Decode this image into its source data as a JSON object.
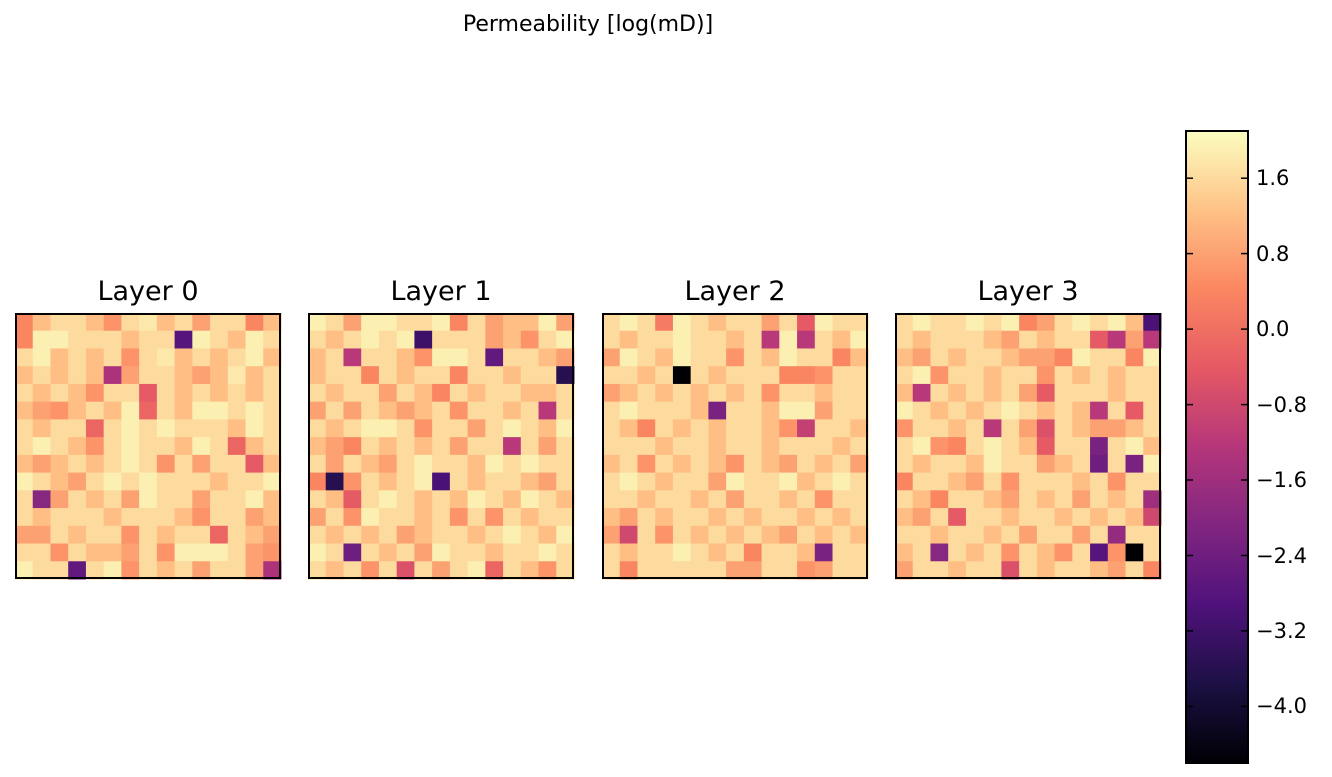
{
  "title": "Permeability [log(mD)]",
  "chart_data": {
    "type": "heatmap",
    "colormap": "magma",
    "value_range": [
      -4.6,
      2.1
    ],
    "colorbar_ticks": [
      "1.6",
      "0.8",
      "0.0",
      "−0.8",
      "−1.6",
      "−2.4",
      "−3.2",
      "−4.0"
    ],
    "colorbar_tick_values": [
      1.6,
      0.8,
      0.0,
      -0.8,
      -1.6,
      -2.4,
      -3.2,
      -4.0
    ],
    "axes_ticks": "none",
    "panels": [
      {
        "title": "Layer 0",
        "values": [
          [
            0.4,
            1.2,
            1.6,
            1.6,
            1.2,
            0.6,
            1.6,
            1.8,
            1.2,
            1.6,
            0.8,
            1.6,
            1.6,
            0.4,
            1.2
          ],
          [
            0.4,
            1.9,
            1.9,
            1.6,
            1.6,
            1.6,
            1.2,
            1.6,
            1.6,
            -2.8,
            1.9,
            1.6,
            1.2,
            1.9,
            1.6
          ],
          [
            1.6,
            1.9,
            1.2,
            1.6,
            1.2,
            1.6,
            0.6,
            1.6,
            1.8,
            1.2,
            1.6,
            1.2,
            1.6,
            1.9,
            1.2
          ],
          [
            1.2,
            1.6,
            1.2,
            1.6,
            1.2,
            -1.4,
            0.8,
            1.6,
            1.6,
            1.2,
            0.8,
            1.2,
            1.8,
            1.2,
            1.6
          ],
          [
            1.6,
            1.2,
            1.6,
            1.2,
            0.6,
            1.6,
            1.6,
            -0.4,
            1.6,
            1.2,
            1.6,
            1.2,
            1.6,
            1.2,
            1.6
          ],
          [
            1.2,
            0.8,
            0.6,
            1.2,
            1.6,
            1.2,
            1.9,
            -0.2,
            1.6,
            1.2,
            1.9,
            1.9,
            1.6,
            1.9,
            1.6
          ],
          [
            1.6,
            1.2,
            1.6,
            1.6,
            -0.2,
            1.6,
            1.9,
            1.6,
            1.9,
            1.6,
            1.6,
            1.6,
            1.2,
            1.9,
            1.6
          ],
          [
            1.6,
            1.9,
            1.6,
            1.2,
            0.6,
            1.6,
            1.9,
            1.6,
            1.6,
            1.2,
            1.9,
            1.6,
            -0.2,
            1.2,
            1.6
          ],
          [
            1.2,
            0.8,
            1.2,
            1.6,
            1.2,
            1.6,
            1.9,
            1.6,
            0.6,
            1.6,
            0.8,
            1.6,
            1.6,
            -0.4,
            1.2
          ],
          [
            1.9,
            1.6,
            1.2,
            0.8,
            1.6,
            1.9,
            1.6,
            1.9,
            1.6,
            1.6,
            1.6,
            1.2,
            1.6,
            1.6,
            1.9
          ],
          [
            1.6,
            -2.0,
            0.8,
            1.6,
            1.2,
            1.6,
            0.8,
            1.9,
            1.6,
            1.6,
            0.8,
            1.6,
            1.6,
            1.9,
            1.2
          ],
          [
            1.6,
            1.2,
            1.6,
            1.6,
            1.6,
            1.2,
            1.6,
            1.6,
            1.6,
            1.2,
            0.6,
            1.6,
            1.6,
            0.8,
            1.2
          ],
          [
            0.8,
            0.8,
            1.6,
            1.2,
            1.6,
            1.6,
            0.6,
            1.6,
            1.2,
            1.6,
            1.6,
            -0.2,
            1.6,
            1.2,
            0.8
          ],
          [
            1.6,
            1.6,
            0.6,
            1.6,
            1.2,
            1.2,
            0.8,
            1.6,
            0.6,
            1.9,
            1.9,
            1.9,
            1.6,
            0.8,
            0.6
          ],
          [
            1.9,
            1.6,
            1.6,
            -2.6,
            1.6,
            1.9,
            0.6,
            1.6,
            1.2,
            1.6,
            0.8,
            1.6,
            1.6,
            0.8,
            -1.4
          ]
        ]
      },
      {
        "title": "Layer 1",
        "values": [
          [
            1.9,
            1.6,
            0.8,
            1.9,
            1.9,
            1.6,
            1.6,
            1.9,
            0.4,
            1.6,
            0.8,
            1.2,
            1.2,
            1.9,
            0.8
          ],
          [
            1.6,
            1.2,
            1.6,
            1.9,
            1.6,
            1.9,
            -3.2,
            1.6,
            1.6,
            1.6,
            0.8,
            1.2,
            0.6,
            1.6,
            1.9
          ],
          [
            1.2,
            1.6,
            -1.2,
            1.6,
            1.6,
            1.2,
            0.6,
            1.9,
            1.9,
            1.6,
            -2.6,
            1.6,
            1.6,
            1.2,
            0.8
          ],
          [
            1.2,
            1.6,
            1.6,
            0.4,
            1.6,
            1.2,
            1.6,
            1.6,
            0.4,
            1.6,
            1.6,
            1.2,
            1.6,
            1.6,
            -3.6
          ],
          [
            1.6,
            1.2,
            1.6,
            1.6,
            0.8,
            1.6,
            1.2,
            0.4,
            1.6,
            1.2,
            1.6,
            1.6,
            1.2,
            1.2,
            1.6
          ],
          [
            0.8,
            1.6,
            0.8,
            1.6,
            1.2,
            0.8,
            1.2,
            1.6,
            0.6,
            1.6,
            1.6,
            1.2,
            1.6,
            -1.2,
            1.6
          ],
          [
            1.6,
            1.2,
            1.6,
            1.9,
            1.9,
            1.6,
            0.6,
            1.6,
            1.6,
            0.8,
            1.6,
            1.9,
            1.6,
            1.2,
            1.9
          ],
          [
            1.2,
            0.8,
            0.4,
            1.6,
            1.2,
            1.6,
            1.2,
            1.6,
            0.8,
            1.6,
            1.6,
            -1.2,
            1.6,
            0.8,
            1.6
          ],
          [
            1.6,
            0.8,
            1.6,
            1.2,
            0.8,
            1.6,
            1.9,
            1.6,
            1.6,
            1.2,
            1.9,
            1.6,
            1.9,
            1.6,
            1.6
          ],
          [
            0.4,
            -3.6,
            0.6,
            1.6,
            1.2,
            1.6,
            1.9,
            -3.0,
            1.6,
            1.2,
            1.6,
            1.6,
            1.2,
            0.8,
            1.6
          ],
          [
            1.6,
            1.2,
            -0.4,
            1.6,
            1.9,
            1.6,
            1.2,
            1.6,
            1.2,
            1.9,
            1.6,
            1.2,
            1.9,
            1.6,
            1.2
          ],
          [
            0.8,
            1.6,
            0.6,
            1.9,
            1.6,
            1.6,
            1.2,
            1.6,
            0.6,
            1.6,
            0.6,
            1.6,
            1.2,
            1.6,
            1.6
          ],
          [
            1.6,
            1.2,
            1.6,
            1.2,
            1.6,
            0.8,
            1.2,
            1.6,
            1.6,
            1.2,
            1.6,
            1.9,
            1.6,
            1.2,
            1.9
          ],
          [
            1.9,
            1.6,
            -2.4,
            1.6,
            1.2,
            1.6,
            0.8,
            1.9,
            1.6,
            1.6,
            1.2,
            1.6,
            1.6,
            1.9,
            1.6
          ],
          [
            1.6,
            1.2,
            1.6,
            0.6,
            1.6,
            -0.6,
            1.6,
            0.8,
            1.6,
            1.9,
            -0.2,
            1.6,
            1.2,
            0.6,
            1.6
          ]
        ]
      },
      {
        "title": "Layer 2",
        "values": [
          [
            1.6,
            1.9,
            1.6,
            0.2,
            1.9,
            1.6,
            1.2,
            1.6,
            1.6,
            0.8,
            1.6,
            -0.4,
            1.9,
            1.6,
            1.6
          ],
          [
            1.6,
            1.2,
            1.6,
            1.6,
            1.9,
            1.6,
            1.6,
            1.2,
            1.6,
            -1.2,
            1.9,
            -1.2,
            1.6,
            1.2,
            1.9
          ],
          [
            0.8,
            1.9,
            1.6,
            1.2,
            1.9,
            1.6,
            1.6,
            0.6,
            1.6,
            1.2,
            1.9,
            1.6,
            1.6,
            0.4,
            1.2
          ],
          [
            1.6,
            1.6,
            1.2,
            1.6,
            -4.6,
            1.6,
            1.2,
            1.6,
            1.6,
            1.6,
            0.4,
            0.4,
            0.6,
            1.6,
            1.6
          ],
          [
            0.8,
            1.2,
            1.6,
            1.2,
            1.6,
            1.2,
            1.6,
            1.2,
            1.6,
            0.6,
            1.6,
            1.6,
            1.2,
            1.6,
            1.6
          ],
          [
            1.6,
            1.9,
            1.6,
            1.6,
            1.6,
            1.2,
            -2.2,
            1.6,
            1.6,
            1.2,
            1.9,
            1.9,
            0.8,
            1.6,
            1.6
          ],
          [
            1.6,
            1.2,
            0.4,
            1.6,
            1.2,
            1.6,
            1.2,
            1.6,
            1.6,
            1.2,
            0.6,
            -1.0,
            1.6,
            1.6,
            1.2
          ],
          [
            1.6,
            1.6,
            1.6,
            1.2,
            1.6,
            1.6,
            1.2,
            1.6,
            1.6,
            1.2,
            1.6,
            1.6,
            1.6,
            1.2,
            1.6
          ],
          [
            1.2,
            1.6,
            0.6,
            1.6,
            1.2,
            1.6,
            1.2,
            0.6,
            1.6,
            1.2,
            0.8,
            1.6,
            1.2,
            1.6,
            0.8
          ],
          [
            1.6,
            1.9,
            1.6,
            1.2,
            1.6,
            1.6,
            0.8,
            1.9,
            1.6,
            1.6,
            1.9,
            1.2,
            1.6,
            1.9,
            1.6
          ],
          [
            1.6,
            1.6,
            1.2,
            1.6,
            1.6,
            1.2,
            1.6,
            0.8,
            1.6,
            1.6,
            1.2,
            1.6,
            0.6,
            1.6,
            1.6
          ],
          [
            1.2,
            0.8,
            1.6,
            1.2,
            1.6,
            1.6,
            1.2,
            1.6,
            1.2,
            1.6,
            1.6,
            1.2,
            1.6,
            1.2,
            1.6
          ],
          [
            0.8,
            -0.8,
            1.6,
            0.6,
            1.6,
            1.2,
            1.6,
            1.2,
            1.6,
            1.2,
            0.8,
            1.6,
            1.2,
            1.6,
            1.2
          ],
          [
            1.6,
            1.2,
            1.6,
            1.6,
            1.9,
            1.6,
            1.2,
            1.6,
            0.4,
            1.6,
            1.6,
            1.2,
            -2.2,
            1.6,
            1.6
          ],
          [
            1.6,
            0.4,
            1.6,
            1.6,
            1.6,
            1.6,
            1.6,
            0.8,
            0.8,
            1.6,
            1.6,
            0.6,
            0.8,
            1.6,
            1.6
          ]
        ]
      },
      {
        "title": "Layer 3",
        "values": [
          [
            1.6,
            1.9,
            1.6,
            1.6,
            1.9,
            1.6,
            1.9,
            0.4,
            0.8,
            1.6,
            1.9,
            1.6,
            1.9,
            1.2,
            -3.0
          ],
          [
            1.6,
            1.2,
            1.6,
            1.6,
            1.6,
            1.2,
            0.8,
            1.6,
            1.2,
            1.6,
            1.6,
            -0.4,
            -1.2,
            0.8,
            -1.2
          ],
          [
            1.2,
            0.8,
            1.6,
            1.2,
            1.6,
            1.6,
            1.2,
            0.8,
            0.8,
            0.4,
            1.9,
            1.6,
            1.6,
            0.4,
            1.9
          ],
          [
            1.6,
            1.9,
            0.6,
            1.6,
            1.6,
            1.2,
            1.6,
            1.6,
            0.6,
            1.6,
            1.2,
            1.6,
            1.2,
            1.6,
            1.6
          ],
          [
            1.2,
            -1.2,
            1.6,
            1.2,
            1.6,
            1.2,
            1.6,
            0.8,
            -0.4,
            1.6,
            1.6,
            1.6,
            1.2,
            1.6,
            1.6
          ],
          [
            1.9,
            1.6,
            1.2,
            1.6,
            1.2,
            1.6,
            1.9,
            1.6,
            1.2,
            1.6,
            1.2,
            -1.2,
            1.6,
            -0.4,
            1.6
          ],
          [
            0.6,
            1.6,
            1.6,
            1.2,
            1.6,
            -1.2,
            1.6,
            0.8,
            -0.6,
            1.6,
            1.2,
            0.8,
            0.8,
            1.2,
            1.6
          ],
          [
            1.6,
            1.9,
            0.6,
            0.4,
            1.6,
            1.9,
            1.6,
            1.2,
            -0.4,
            1.6,
            1.6,
            -2.2,
            1.6,
            1.9,
            1.2
          ],
          [
            1.6,
            1.2,
            1.6,
            1.6,
            1.2,
            1.9,
            1.6,
            1.6,
            0.8,
            1.2,
            1.6,
            -2.4,
            1.6,
            -2.2,
            1.9
          ],
          [
            0.4,
            1.6,
            1.6,
            1.2,
            0.8,
            1.6,
            0.6,
            1.6,
            1.6,
            1.6,
            1.2,
            1.6,
            0.6,
            1.6,
            1.6
          ],
          [
            1.6,
            1.2,
            0.4,
            1.6,
            1.6,
            1.2,
            0.8,
            1.6,
            1.2,
            1.6,
            0.8,
            1.6,
            1.2,
            1.6,
            -1.6
          ],
          [
            1.2,
            0.8,
            1.6,
            -0.4,
            1.6,
            1.6,
            1.2,
            1.6,
            1.6,
            1.2,
            1.6,
            1.2,
            1.6,
            1.2,
            -0.8
          ],
          [
            1.6,
            1.6,
            1.2,
            1.6,
            1.6,
            1.2,
            1.6,
            0.8,
            1.6,
            1.6,
            0.8,
            1.6,
            -1.8,
            1.6,
            1.6
          ],
          [
            1.2,
            1.6,
            -2.0,
            1.6,
            1.2,
            1.6,
            0.6,
            1.6,
            1.2,
            0.6,
            1.6,
            -2.8,
            0.6,
            -4.6,
            1.6
          ],
          [
            0.8,
            1.6,
            1.6,
            1.2,
            1.6,
            1.6,
            -0.6,
            1.6,
            1.2,
            1.6,
            1.6,
            1.2,
            0.8,
            1.6,
            0.4
          ]
        ]
      }
    ]
  }
}
